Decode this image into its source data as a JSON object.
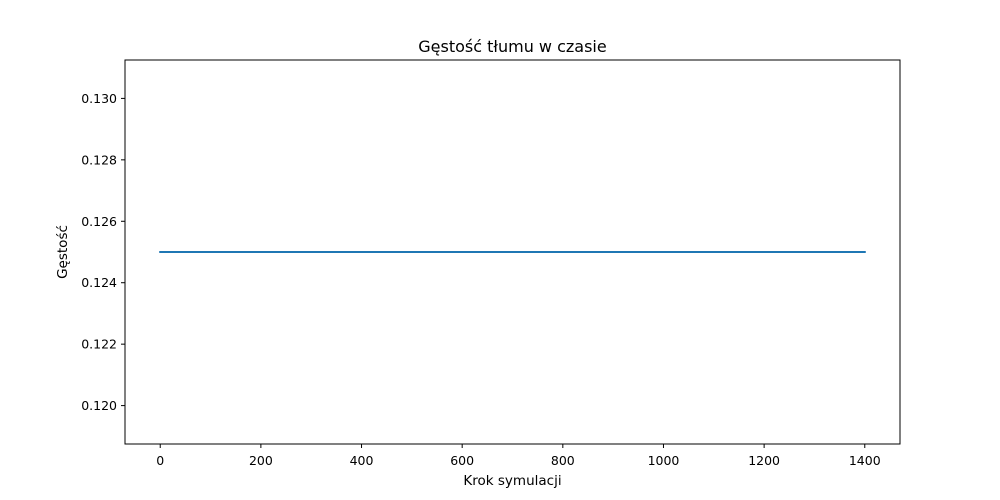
{
  "chart_data": {
    "type": "line",
    "title": "Gęstość tłumu w czasie",
    "xlabel": "Krok symulacji",
    "ylabel": "Gęstość",
    "xlim": [
      -70,
      1470
    ],
    "ylim": [
      0.11875,
      0.13125
    ],
    "xticks": [
      0,
      200,
      400,
      600,
      800,
      1000,
      1200,
      1400
    ],
    "xtick_labels": [
      "0",
      "200",
      "400",
      "600",
      "800",
      "1000",
      "1200",
      "1400"
    ],
    "yticks": [
      0.12,
      0.122,
      0.124,
      0.126,
      0.128,
      0.13
    ],
    "ytick_labels": [
      "0.120",
      "0.122",
      "0.124",
      "0.126",
      "0.128",
      "0.130"
    ],
    "grid": false,
    "legend": "none",
    "series": [
      {
        "color": "#1f77b4",
        "x": [
          0,
          1400
        ],
        "y": [
          0.125,
          0.125
        ]
      }
    ]
  }
}
